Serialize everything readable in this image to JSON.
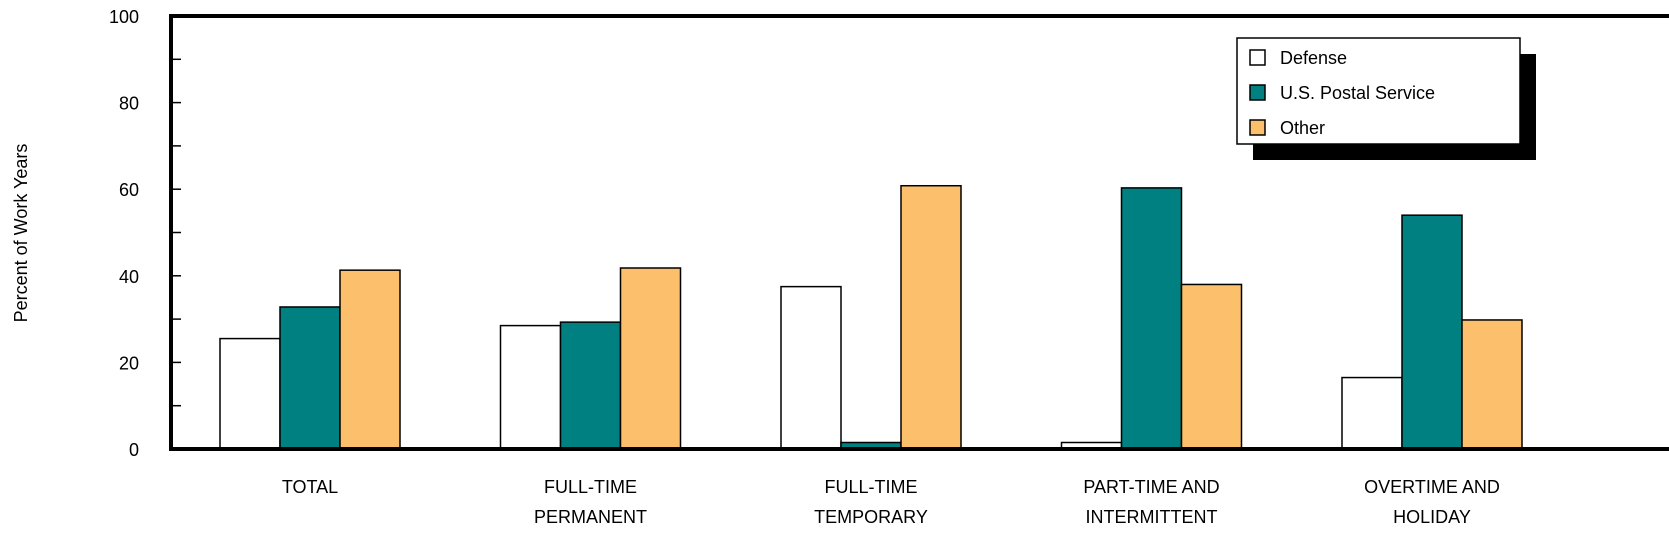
{
  "chart_data": {
    "type": "bar",
    "title": "",
    "xlabel": "",
    "ylabel": "Percent of Work Years",
    "ylim": [
      0,
      100
    ],
    "yticks": [
      0,
      20,
      40,
      60,
      80,
      100
    ],
    "grid": false,
    "legend_position": "top-right",
    "categories": [
      [
        "TOTAL"
      ],
      [
        "FULL-TIME",
        "PERMANENT"
      ],
      [
        "FULL-TIME",
        "TEMPORARY"
      ],
      [
        "PART-TIME AND",
        "INTERMITTENT"
      ],
      [
        "OVERTIME AND",
        "HOLIDAY"
      ]
    ],
    "series": [
      {
        "name": "Defense",
        "color": "#ffffff",
        "values": [
          25.5,
          28.5,
          37.5,
          1.5,
          16.5
        ]
      },
      {
        "name": "U.S. Postal Service",
        "color": "#008080",
        "values": [
          32.8,
          29.3,
          1.5,
          60.3,
          54.0
        ]
      },
      {
        "name": "Other",
        "color": "#fcbf6b",
        "values": [
          41.3,
          41.8,
          60.8,
          38.0,
          29.8
        ]
      }
    ]
  }
}
